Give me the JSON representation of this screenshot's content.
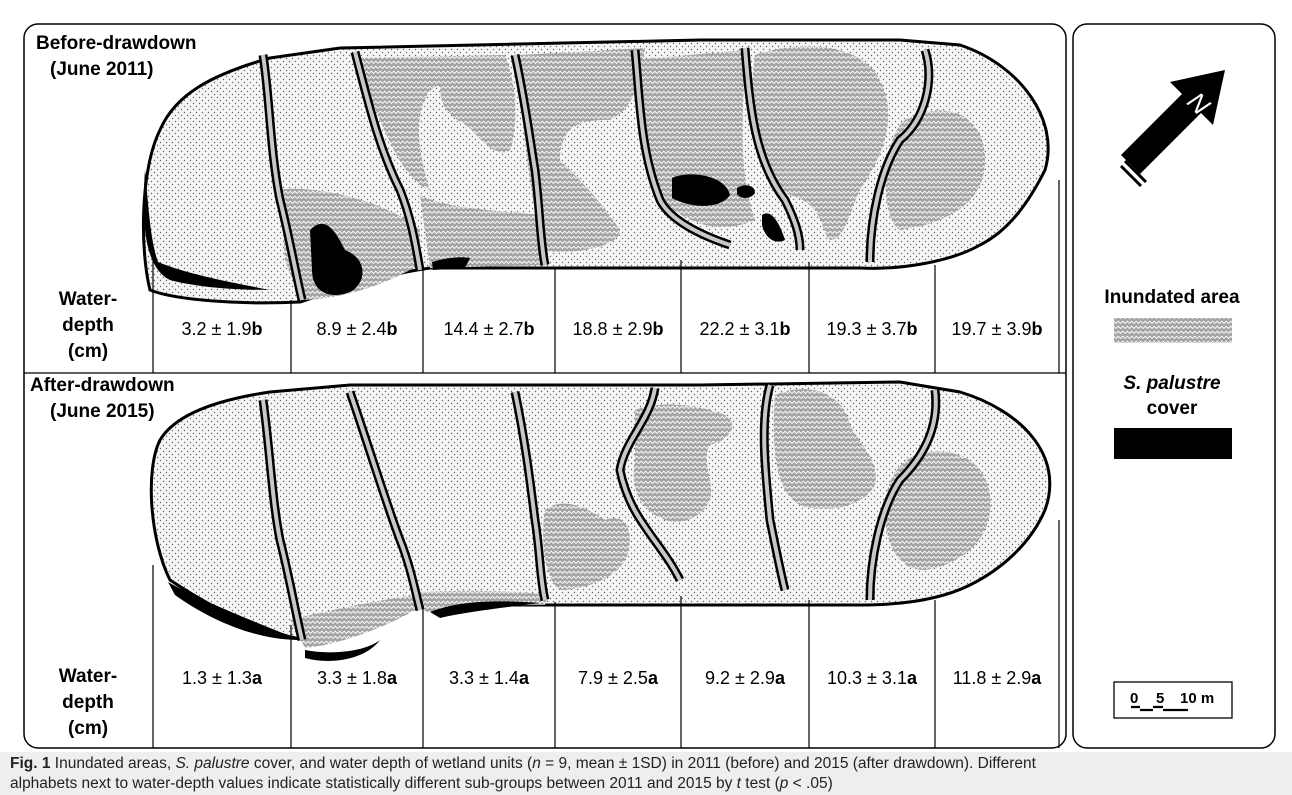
{
  "before": {
    "title_line1": "Before-drawdown",
    "title_line2": "(June 2011)",
    "depth_label": [
      "Water-",
      "depth",
      "(cm)"
    ],
    "units": [
      {
        "value": "3.2 ± 1.9",
        "letter": "b"
      },
      {
        "value": "8.9 ± 2.4",
        "letter": "b"
      },
      {
        "value": "14.4 ± 2.7",
        "letter": "b"
      },
      {
        "value": "18.8 ± 2.9",
        "letter": "b"
      },
      {
        "value": "22.2 ± 3.1",
        "letter": "b"
      },
      {
        "value": "19.3 ± 3.7",
        "letter": "b"
      },
      {
        "value": "19.7 ± 3.9",
        "letter": "b"
      }
    ]
  },
  "after": {
    "title_line1": "After-drawdown",
    "title_line2": "(June 2015)",
    "depth_label": [
      "Water-",
      "depth",
      "(cm)"
    ],
    "units": [
      {
        "value": "1.3 ± 1.3",
        "letter": "a"
      },
      {
        "value": "3.3 ± 1.8",
        "letter": "a"
      },
      {
        "value": "3.3 ± 1.4",
        "letter": "a"
      },
      {
        "value": "7.9 ± 2.5",
        "letter": "a"
      },
      {
        "value": "9.2 ± 2.9",
        "letter": "a"
      },
      {
        "value": "10.3 ± 3.1",
        "letter": "a"
      },
      {
        "value": "11.8 ± 2.9",
        "letter": "a"
      }
    ]
  },
  "legend": {
    "north_letter": "N",
    "inundated_label": "Inundated area",
    "species_label_italic": "S. palustre",
    "species_label_rest": "cover",
    "scale": {
      "tick0": "0",
      "tick1": "5",
      "tick2": "10 m"
    }
  },
  "caption": {
    "fig_label": "Fig. 1",
    "line1_a": " Inundated areas, ",
    "line1_species": "S. palustre",
    "line1_b": " cover, and water depth of wetland units (",
    "line1_n": "n",
    "line1_c": " = 9, mean ± 1SD) in 2011 (before) and 2015 (after drawdown). Different",
    "line2_a": "alphabets next to water-depth values indicate statistically different sub-groups between 2011 and 2015 by ",
    "line2_t": "t",
    "line2_b": " test (",
    "line2_p": "p",
    "line2_c": " < .05)"
  },
  "colors": {
    "inundated_fill": "#9a9a9a",
    "species_fill": "#000000",
    "land_fill": "#f4f4f4",
    "channel_fill": "#c8c8c8",
    "caption_bg": "#eeeeee"
  }
}
